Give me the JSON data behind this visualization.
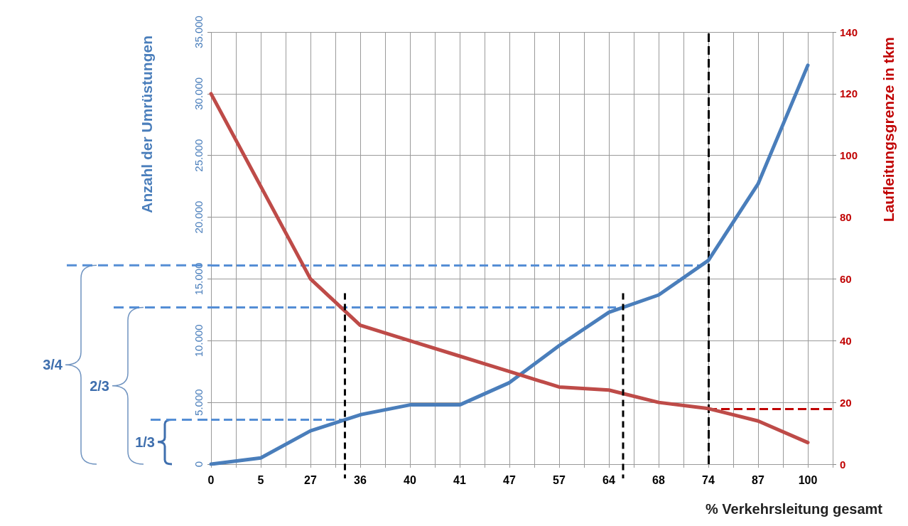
{
  "chart_data": {
    "type": "line",
    "xlabel": "% Verkehrsleitung gesamt",
    "ylabel": "Anzahl der Umrüstungen",
    "y2label": "Laufleitungsgrenze in tkm",
    "categories": [
      "0",
      "5",
      "27",
      "36",
      "40",
      "41",
      "47",
      "57",
      "64",
      "68",
      "74",
      "87",
      "100"
    ],
    "series": [
      {
        "color": "#4a7ebb",
        "values": [
          0,
          500,
          2700,
          4000,
          4800,
          4800,
          6600,
          9600,
          12300,
          13700,
          16500,
          22700,
          32300
        ]
      },
      {
        "color": "#be4b48",
        "axis": "y2",
        "values": [
          120,
          90,
          60,
          45,
          40,
          35,
          30,
          25,
          24,
          20,
          18,
          14,
          7
        ]
      }
    ],
    "ylim": [
      0,
      35000
    ],
    "yticks": [
      {
        "value": 0,
        "label": "0"
      },
      {
        "value": 5000,
        "label": "5.000"
      },
      {
        "value": 10000,
        "label": "10.000"
      },
      {
        "value": 15000,
        "label": "15.000"
      },
      {
        "value": 20000,
        "label": "20.000"
      },
      {
        "value": 25000,
        "label": "25.000"
      },
      {
        "value": 30000,
        "label": "30.000"
      },
      {
        "value": 35000,
        "label": "35.000"
      }
    ],
    "y2lim": [
      0,
      140
    ],
    "y2ticks": [
      0,
      20,
      40,
      60,
      80,
      100,
      120,
      140
    ],
    "grid": true,
    "marker": "none",
    "line_style": "solid",
    "ref_lines": [
      {
        "axis": "y",
        "value": 3600,
        "color": "#558ed5",
        "line_style": "dashed"
      },
      {
        "axis": "y",
        "value": 12700,
        "color": "#558ed5",
        "line_style": "dashed"
      },
      {
        "axis": "y",
        "value": 16100,
        "color": "#558ed5",
        "line_style": "dashed"
      },
      {
        "axis": "y2",
        "value": 18,
        "color": "#c00000",
        "line_style": "dashed"
      },
      {
        "axis": "x",
        "value": "74",
        "color": "#000000",
        "line_style": "dashed"
      }
    ],
    "annotations": [
      "1/3",
      "2/3",
      "3/4"
    ]
  }
}
